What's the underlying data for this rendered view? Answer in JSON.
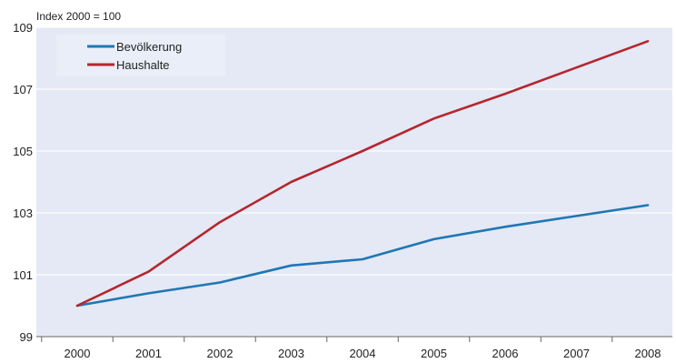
{
  "chart_data": {
    "type": "line",
    "title": "",
    "xlabel": "",
    "ylabel": "Index 2000 = 100",
    "categories": [
      "2000",
      "2001",
      "2002",
      "2003",
      "2004",
      "2005",
      "2006",
      "2007",
      "2008"
    ],
    "yticks": [
      "99",
      "101",
      "103",
      "105",
      "107",
      "109"
    ],
    "ylim": [
      99,
      109
    ],
    "grid": true,
    "legend_position": "top-left",
    "series": [
      {
        "name": "Bevölkerung",
        "color": "#1f77b4",
        "values": [
          100.0,
          100.4,
          100.75,
          101.3,
          101.5,
          102.15,
          102.55,
          102.9,
          103.25
        ]
      },
      {
        "name": "Haushalte",
        "color": "#b5262e",
        "values": [
          100.0,
          101.1,
          102.7,
          104.0,
          105.0,
          106.05,
          106.85,
          107.7,
          108.55
        ]
      }
    ]
  }
}
